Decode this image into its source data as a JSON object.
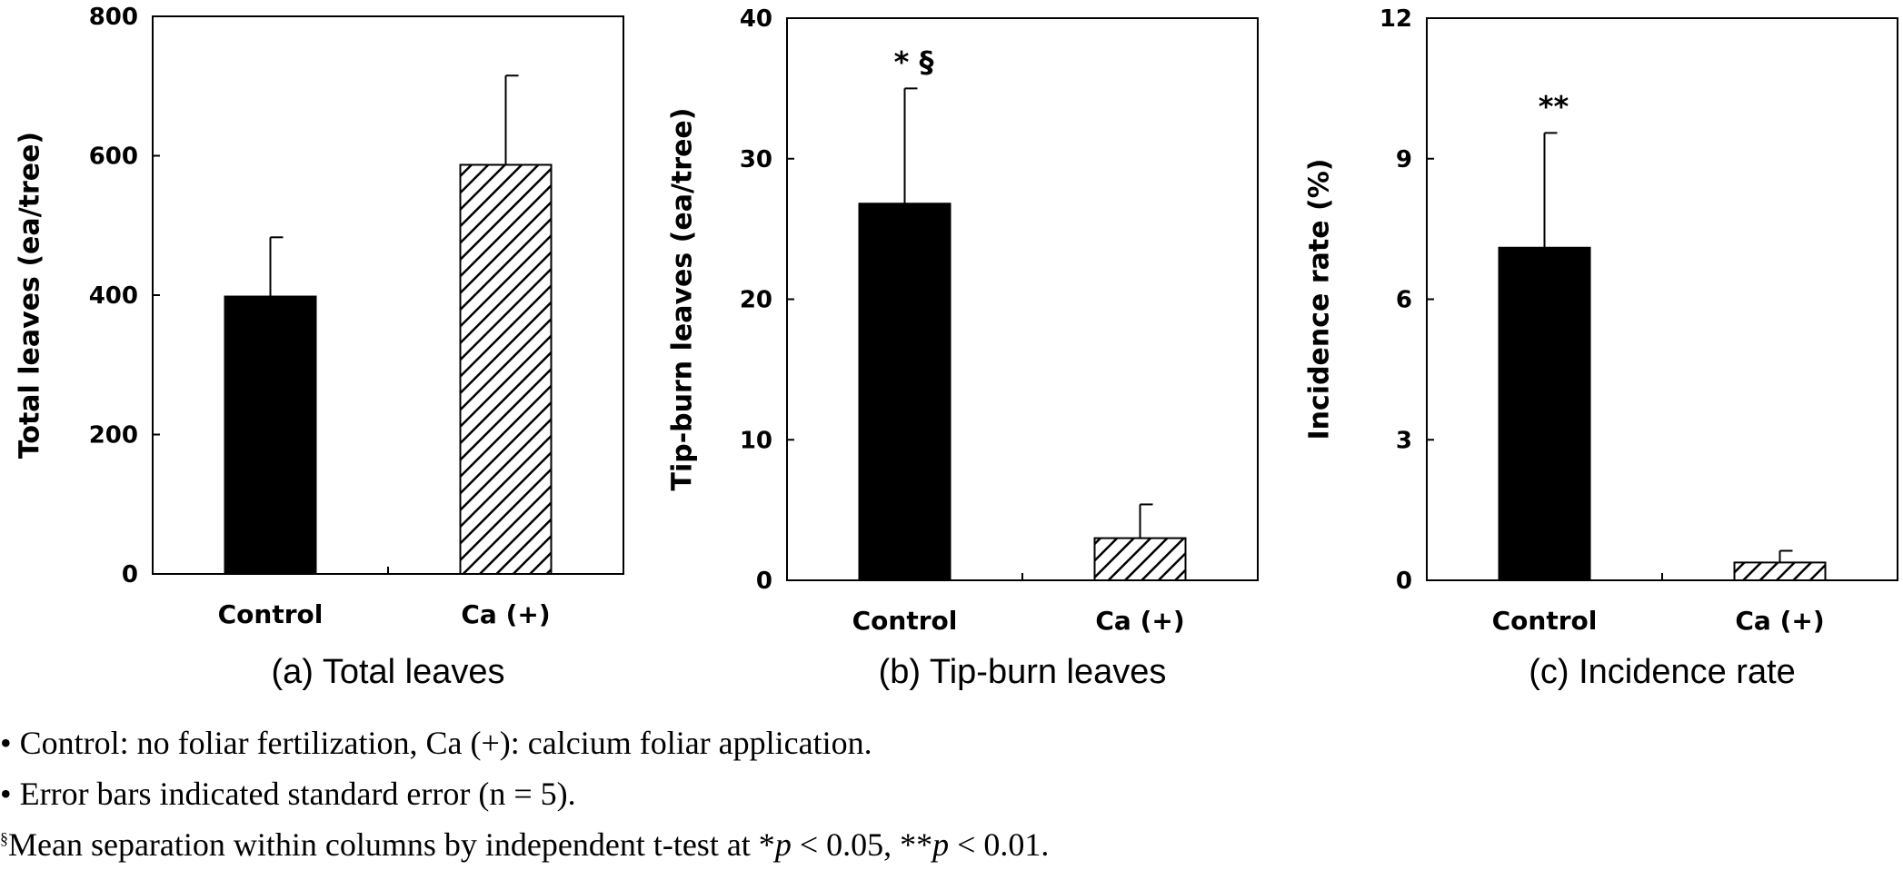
{
  "chart_data": [
    {
      "type": "bar",
      "caption": "(a) Total leaves",
      "ylabel": "Total leaves (ea/tree)",
      "categories": [
        "Control",
        "Ca (+)"
      ],
      "values": [
        398,
        587
      ],
      "errors": [
        85,
        128
      ],
      "significance": [
        "",
        ""
      ],
      "ylim": [
        0,
        800
      ],
      "yticks": [
        "0",
        "200",
        "400",
        "600",
        "800"
      ],
      "fills": [
        "solid",
        "hatched"
      ]
    },
    {
      "type": "bar",
      "caption": "(b) Tip-burn leaves",
      "ylabel": "Tip-burn leaves (ea/tree)",
      "categories": [
        "Control",
        "Ca (+)"
      ],
      "values": [
        26.8,
        3.0
      ],
      "errors": [
        8.2,
        2.4
      ],
      "significance": [
        "* §",
        ""
      ],
      "ylim": [
        0,
        40
      ],
      "yticks": [
        "0",
        "10",
        "20",
        "30",
        "40"
      ],
      "fills": [
        "solid",
        "hatched"
      ]
    },
    {
      "type": "bar",
      "caption": "(c) Incidence rate",
      "ylabel": "Incidence rate (%)",
      "categories": [
        "Control",
        "Ca (+)"
      ],
      "values": [
        7.1,
        0.38
      ],
      "errors": [
        2.45,
        0.25
      ],
      "significance": [
        "**",
        ""
      ],
      "ylim": [
        0,
        12
      ],
      "yticks": [
        "0",
        "3",
        "6",
        "9",
        "12"
      ],
      "fills": [
        "solid",
        "hatched"
      ]
    }
  ],
  "notes": {
    "line1": "• Control: no foliar fertilization, Ca (+): calcium foliar application.",
    "line2": "• Error bars indicated standard error (n = 5).",
    "line3_mark": "§",
    "line3_a": "Mean separation within columns by independent t-test at *",
    "line3_p1": "p",
    "line3_b": " < 0.05, **",
    "line3_p2": "p",
    "line3_c": " < 0.01."
  }
}
